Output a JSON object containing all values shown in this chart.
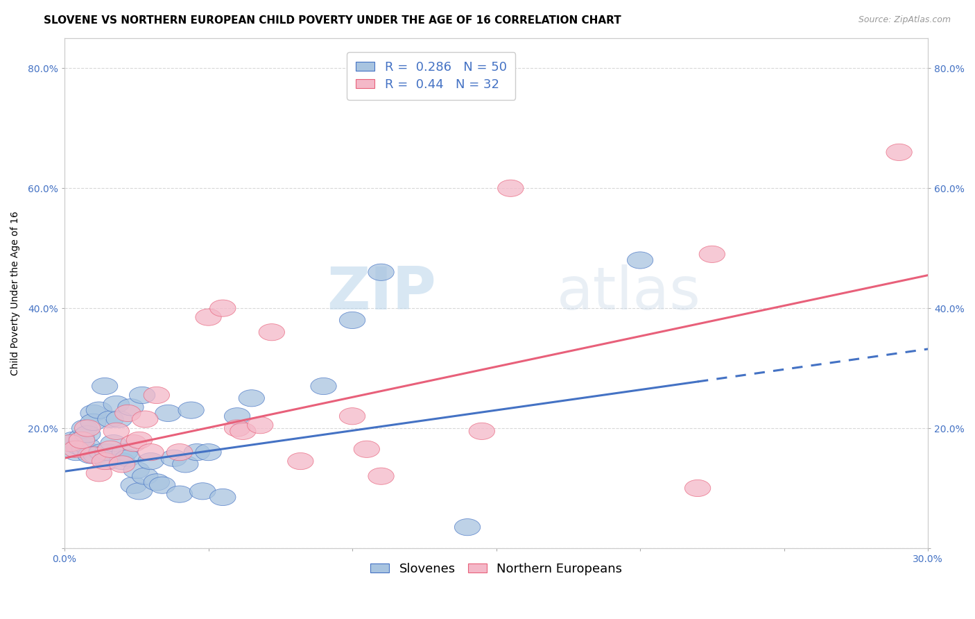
{
  "title": "SLOVENE VS NORTHERN EUROPEAN CHILD POVERTY UNDER THE AGE OF 16 CORRELATION CHART",
  "source": "Source: ZipAtlas.com",
  "ylabel": "Child Poverty Under the Age of 16",
  "xlim": [
    0.0,
    0.3
  ],
  "ylim": [
    0.0,
    0.85
  ],
  "xticks": [
    0.0,
    0.05,
    0.1,
    0.15,
    0.2,
    0.25,
    0.3
  ],
  "xticklabels": [
    "0.0%",
    "",
    "",
    "",
    "",
    "",
    "30.0%"
  ],
  "yticks": [
    0.0,
    0.2,
    0.4,
    0.6,
    0.8
  ],
  "yticklabels": [
    "",
    "20.0%",
    "40.0%",
    "60.0%",
    "80.0%"
  ],
  "slovene_color": "#a8c4e0",
  "northern_color": "#f4b8c8",
  "slovene_line_color": "#4472c4",
  "northern_line_color": "#e8607a",
  "R_slovene": 0.286,
  "N_slovene": 50,
  "R_northern": 0.44,
  "N_northern": 32,
  "slovene_line_x0": 0.0,
  "slovene_line_y0": 0.128,
  "slovene_line_x1": 0.3,
  "slovene_line_y1": 0.332,
  "slovene_line_solid_end": 0.22,
  "northern_line_x0": 0.0,
  "northern_line_y0": 0.15,
  "northern_line_x1": 0.3,
  "northern_line_y1": 0.455,
  "slovene_scatter_x": [
    0.002,
    0.003,
    0.004,
    0.005,
    0.006,
    0.007,
    0.007,
    0.008,
    0.008,
    0.009,
    0.01,
    0.01,
    0.011,
    0.012,
    0.013,
    0.014,
    0.015,
    0.015,
    0.016,
    0.017,
    0.018,
    0.019,
    0.02,
    0.021,
    0.022,
    0.023,
    0.024,
    0.025,
    0.026,
    0.027,
    0.028,
    0.03,
    0.032,
    0.034,
    0.036,
    0.038,
    0.04,
    0.042,
    0.044,
    0.046,
    0.048,
    0.05,
    0.055,
    0.06,
    0.065,
    0.09,
    0.1,
    0.11,
    0.14,
    0.2
  ],
  "slovene_scatter_y": [
    0.175,
    0.18,
    0.16,
    0.17,
    0.185,
    0.165,
    0.2,
    0.17,
    0.19,
    0.155,
    0.225,
    0.21,
    0.155,
    0.23,
    0.16,
    0.27,
    0.145,
    0.16,
    0.215,
    0.175,
    0.24,
    0.215,
    0.145,
    0.16,
    0.15,
    0.235,
    0.105,
    0.13,
    0.095,
    0.255,
    0.12,
    0.145,
    0.11,
    0.105,
    0.225,
    0.15,
    0.09,
    0.14,
    0.23,
    0.16,
    0.095,
    0.16,
    0.085,
    0.22,
    0.25,
    0.27,
    0.38,
    0.46,
    0.035,
    0.48
  ],
  "northern_scatter_x": [
    0.002,
    0.004,
    0.006,
    0.008,
    0.01,
    0.012,
    0.014,
    0.016,
    0.018,
    0.02,
    0.022,
    0.024,
    0.026,
    0.028,
    0.03,
    0.032,
    0.04,
    0.05,
    0.055,
    0.06,
    0.062,
    0.068,
    0.072,
    0.082,
    0.1,
    0.105,
    0.11,
    0.145,
    0.155,
    0.22,
    0.225,
    0.29
  ],
  "northern_scatter_y": [
    0.175,
    0.165,
    0.18,
    0.2,
    0.155,
    0.125,
    0.145,
    0.165,
    0.195,
    0.14,
    0.225,
    0.175,
    0.18,
    0.215,
    0.16,
    0.255,
    0.16,
    0.385,
    0.4,
    0.2,
    0.195,
    0.205,
    0.36,
    0.145,
    0.22,
    0.165,
    0.12,
    0.195,
    0.6,
    0.1,
    0.49,
    0.66
  ],
  "watermark_zip": "ZIP",
  "watermark_atlas": "atlas",
  "grid_color": "#d8d8d8",
  "title_fontsize": 11,
  "axis_label_fontsize": 10,
  "tick_fontsize": 10,
  "legend_fontsize": 13
}
